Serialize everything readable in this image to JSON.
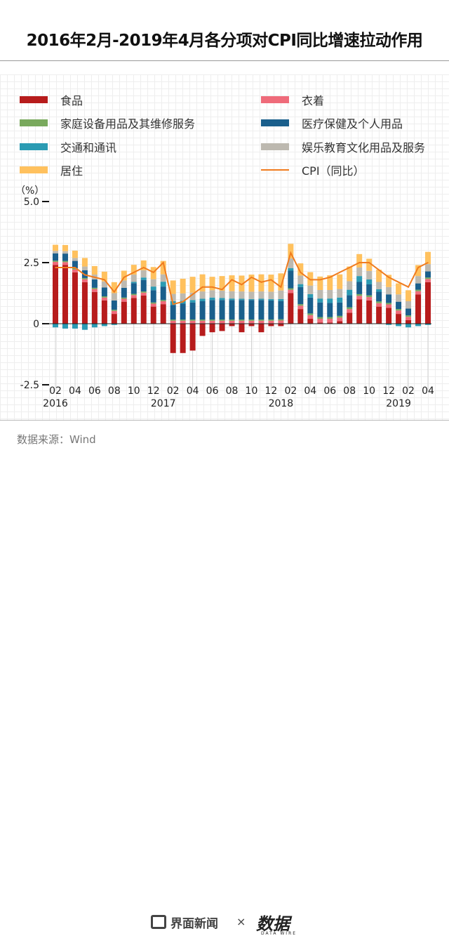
{
  "title": "2016年2月-2019年4月各分项对CPI同比增速拉动作用",
  "source": "数据来源：Wind",
  "footer": {
    "brand1": "界面新闻",
    "times": "×",
    "brand2": "数据",
    "brand2_sub": "DATA WIRE"
  },
  "legend": [
    {
      "key": "food",
      "label": "食品",
      "color": "#b71c1c",
      "kind": "bar"
    },
    {
      "key": "clothing",
      "label": "衣着",
      "color": "#ef6b7a",
      "kind": "bar"
    },
    {
      "key": "household",
      "label": "家庭设备用品及其维修服务",
      "color": "#79a95d",
      "kind": "bar"
    },
    {
      "key": "health",
      "label": "医疗保健及个人用品",
      "color": "#1a5f8c",
      "kind": "bar"
    },
    {
      "key": "transport",
      "label": "交通和通讯",
      "color": "#2b9bb3",
      "kind": "bar"
    },
    {
      "key": "education",
      "label": "娱乐教育文化用品及服务",
      "color": "#bdb9b0",
      "kind": "bar"
    },
    {
      "key": "housing",
      "label": "居住",
      "color": "#ffc15e",
      "kind": "bar"
    },
    {
      "key": "cpi",
      "label": "CPI（同比）",
      "color": "#f07b1e",
      "kind": "line"
    }
  ],
  "chart_data": {
    "type": "bar",
    "stacked": true,
    "unit": "（%）",
    "ylim": [
      -2.5,
      5.0
    ],
    "yticks": [
      "5.0",
      "2.5",
      "0",
      "-2.5"
    ],
    "ytick_values": [
      5.0,
      2.5,
      0,
      -2.5
    ],
    "x_tick_labels": [
      "02",
      "04",
      "06",
      "08",
      "10",
      "12",
      "02",
      "04",
      "06",
      "08",
      "10",
      "12",
      "02",
      "04",
      "06",
      "08",
      "10",
      "12",
      "02",
      "04"
    ],
    "year_labels": [
      {
        "label": "2016",
        "index": 0
      },
      {
        "label": "2017",
        "index": 11
      },
      {
        "label": "2018",
        "index": 23
      },
      {
        "label": "2019",
        "index": 35
      }
    ],
    "categories": [
      "2016-02",
      "2016-03",
      "2016-04",
      "2016-05",
      "2016-06",
      "2016-07",
      "2016-08",
      "2016-09",
      "2016-10",
      "2016-11",
      "2016-12",
      "2017-01",
      "2017-02",
      "2017-03",
      "2017-04",
      "2017-05",
      "2017-06",
      "2017-07",
      "2017-08",
      "2017-09",
      "2017-10",
      "2017-11",
      "2017-12",
      "2018-01",
      "2018-02",
      "2018-03",
      "2018-04",
      "2018-05",
      "2018-06",
      "2018-07",
      "2018-08",
      "2018-09",
      "2018-10",
      "2018-11",
      "2018-12",
      "2019-01",
      "2019-02",
      "2019-03",
      "2019-04"
    ],
    "series": [
      {
        "name": "食品",
        "key": "food",
        "values": [
          2.4,
          2.4,
          2.1,
          1.7,
          1.3,
          0.95,
          0.4,
          0.9,
          1.05,
          1.15,
          0.7,
          0.8,
          -1.2,
          -1.2,
          -1.1,
          -0.5,
          -0.35,
          -0.3,
          -0.1,
          -0.35,
          -0.1,
          -0.35,
          -0.1,
          -0.1,
          1.25,
          0.6,
          0.2,
          0.05,
          0.05,
          0.1,
          0.45,
          1.0,
          0.95,
          0.7,
          0.65,
          0.4,
          0.15,
          1.2,
          1.7
        ]
      },
      {
        "name": "衣着",
        "key": "clothing",
        "values": [
          0.13,
          0.12,
          0.12,
          0.12,
          0.12,
          0.12,
          0.12,
          0.12,
          0.12,
          0.12,
          0.12,
          0.12,
          0.12,
          0.12,
          0.12,
          0.12,
          0.12,
          0.12,
          0.12,
          0.12,
          0.12,
          0.12,
          0.12,
          0.13,
          0.14,
          0.14,
          0.15,
          0.15,
          0.15,
          0.15,
          0.15,
          0.14,
          0.14,
          0.14,
          0.14,
          0.14,
          0.13,
          0.13,
          0.13
        ]
      },
      {
        "name": "家庭设备用品及其维修服务",
        "key": "household",
        "values": [
          0.05,
          0.05,
          0.05,
          0.05,
          0.05,
          0.05,
          0.05,
          0.05,
          0.05,
          0.05,
          0.05,
          0.05,
          0.05,
          0.05,
          0.05,
          0.05,
          0.05,
          0.05,
          0.05,
          0.05,
          0.05,
          0.05,
          0.05,
          0.05,
          0.06,
          0.06,
          0.07,
          0.07,
          0.07,
          0.07,
          0.07,
          0.07,
          0.07,
          0.07,
          0.06,
          0.06,
          0.06,
          0.06,
          0.06
        ]
      },
      {
        "name": "医疗保健及个人用品",
        "key": "health",
        "values": [
          0.3,
          0.3,
          0.3,
          0.32,
          0.34,
          0.36,
          0.38,
          0.4,
          0.44,
          0.47,
          0.5,
          0.55,
          0.6,
          0.65,
          0.7,
          0.75,
          0.8,
          0.8,
          0.8,
          0.8,
          0.8,
          0.8,
          0.78,
          0.75,
          0.72,
          0.7,
          0.65,
          0.6,
          0.58,
          0.55,
          0.5,
          0.5,
          0.45,
          0.4,
          0.35,
          0.3,
          0.28,
          0.26,
          0.25
        ]
      },
      {
        "name": "交通和通讯",
        "key": "transport",
        "values": [
          -0.15,
          -0.2,
          -0.2,
          -0.25,
          -0.15,
          -0.1,
          -0.05,
          0.0,
          0.05,
          0.1,
          0.15,
          0.2,
          0.15,
          0.12,
          0.1,
          0.1,
          0.1,
          0.08,
          0.06,
          0.05,
          0.04,
          0.05,
          0.06,
          0.08,
          0.1,
          0.12,
          0.14,
          0.16,
          0.18,
          0.2,
          0.22,
          0.24,
          0.2,
          0.1,
          -0.05,
          -0.1,
          -0.15,
          -0.1,
          -0.05
        ]
      },
      {
        "name": "娱乐教育文化用品及服务",
        "key": "education",
        "values": [
          0.1,
          0.1,
          0.12,
          0.15,
          0.2,
          0.25,
          0.3,
          0.3,
          0.3,
          0.3,
          0.3,
          0.3,
          0.3,
          0.3,
          0.3,
          0.3,
          0.3,
          0.3,
          0.3,
          0.3,
          0.3,
          0.3,
          0.3,
          0.35,
          0.4,
          0.35,
          0.35,
          0.35,
          0.35,
          0.35,
          0.35,
          0.35,
          0.35,
          0.3,
          0.3,
          0.3,
          0.3,
          0.3,
          0.3
        ]
      },
      {
        "name": "居住",
        "key": "housing",
        "values": [
          0.25,
          0.25,
          0.3,
          0.35,
          0.35,
          0.4,
          0.45,
          0.4,
          0.4,
          0.4,
          0.5,
          0.55,
          0.55,
          0.6,
          0.65,
          0.7,
          0.55,
          0.6,
          0.65,
          0.65,
          0.7,
          0.7,
          0.7,
          0.7,
          0.6,
          0.5,
          0.55,
          0.55,
          0.6,
          0.6,
          0.6,
          0.55,
          0.5,
          0.5,
          0.5,
          0.45,
          0.45,
          0.45,
          0.5
        ]
      }
    ],
    "cpi": [
      2.3,
      2.3,
      2.3,
      2.0,
      1.9,
      1.8,
      1.3,
      1.9,
      2.1,
      2.3,
      2.1,
      2.5,
      0.8,
      0.9,
      1.2,
      1.5,
      1.5,
      1.4,
      1.8,
      1.6,
      1.9,
      1.7,
      1.8,
      1.5,
      2.9,
      2.1,
      1.8,
      1.8,
      1.9,
      2.1,
      2.3,
      2.5,
      2.5,
      2.2,
      1.9,
      1.7,
      1.5,
      2.3,
      2.5
    ]
  }
}
